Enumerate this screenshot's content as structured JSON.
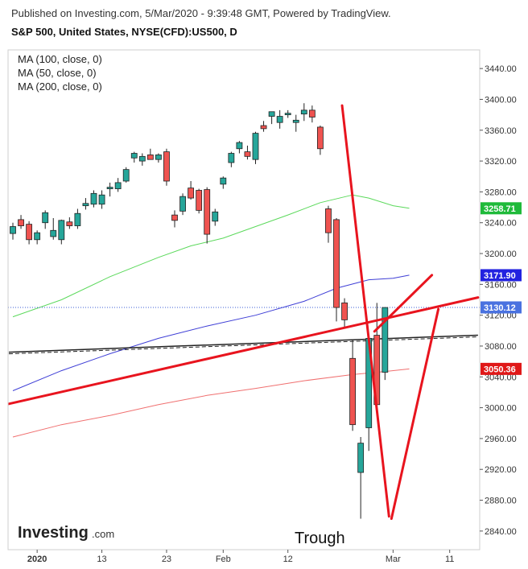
{
  "header": {
    "published": "Published on Investing.com, 5/Mar/2020 - 9:39:48 GMT, Powered by TradingView.",
    "title": "S&P 500, United States, NYSE(CFD):US500, D"
  },
  "brand": {
    "name": "Investing",
    "suffix": ".com"
  },
  "annotation": {
    "trough": "Trough"
  },
  "chart_data": {
    "type": "candlestick",
    "ylim": [
      2820,
      3460
    ],
    "y_ticks": [
      2840,
      2880,
      2920,
      2960,
      3000,
      3040,
      3080,
      3120,
      3160,
      3200,
      3240,
      3280,
      3320,
      3360,
      3400,
      3440
    ],
    "x_ticks": [
      {
        "label": "2020",
        "i": 3
      },
      {
        "label": "13",
        "i": 11
      },
      {
        "label": "23",
        "i": 19
      },
      {
        "label": "Feb",
        "i": 26
      },
      {
        "label": "12",
        "i": 34
      },
      {
        "label": "Mar",
        "i": 47
      },
      {
        "label": "11",
        "i": 54
      }
    ],
    "legend": [
      "MA (100, close, 0)",
      "MA (50, close, 0)",
      "MA (200, close, 0)"
    ],
    "colors": {
      "up": "#26a69a",
      "down": "#ef5350",
      "ma50": "#5bd95b",
      "ma100": "#3f3fd6",
      "ma200": "#f07070",
      "trend": "#e8141e"
    },
    "price_labels": [
      {
        "value": 3258.71,
        "text": "3258.71",
        "color": "#1fba3a"
      },
      {
        "value": 3171.9,
        "text": "3171.90",
        "color": "#2222e0"
      },
      {
        "value": 3130.12,
        "text": "3130.12",
        "color": "#4a72e0"
      },
      {
        "value": 3050.36,
        "text": "3050.36",
        "color": "#e01818"
      }
    ],
    "candles": [
      {
        "o": 3226,
        "h": 3240,
        "l": 3218,
        "c": 3235
      },
      {
        "o": 3244,
        "h": 3250,
        "l": 3232,
        "c": 3236
      },
      {
        "o": 3238,
        "h": 3242,
        "l": 3212,
        "c": 3218
      },
      {
        "o": 3218,
        "h": 3230,
        "l": 3212,
        "c": 3227
      },
      {
        "o": 3240,
        "h": 3256,
        "l": 3232,
        "c": 3253
      },
      {
        "o": 3222,
        "h": 3246,
        "l": 3218,
        "c": 3230
      },
      {
        "o": 3218,
        "h": 3244,
        "l": 3212,
        "c": 3243
      },
      {
        "o": 3241,
        "h": 3247,
        "l": 3232,
        "c": 3236
      },
      {
        "o": 3236,
        "h": 3258,
        "l": 3232,
        "c": 3252
      },
      {
        "o": 3262,
        "h": 3272,
        "l": 3257,
        "c": 3265
      },
      {
        "o": 3264,
        "h": 3282,
        "l": 3260,
        "c": 3278
      },
      {
        "o": 3264,
        "h": 3282,
        "l": 3258,
        "c": 3276
      },
      {
        "o": 3284,
        "h": 3292,
        "l": 3274,
        "c": 3286
      },
      {
        "o": 3284,
        "h": 3298,
        "l": 3280,
        "c": 3292
      },
      {
        "o": 3294,
        "h": 3312,
        "l": 3292,
        "c": 3309
      },
      {
        "o": 3324,
        "h": 3332,
        "l": 3318,
        "c": 3330
      },
      {
        "o": 3320,
        "h": 3330,
        "l": 3314,
        "c": 3326
      },
      {
        "o": 3328,
        "h": 3336,
        "l": 3322,
        "c": 3322
      },
      {
        "o": 3322,
        "h": 3330,
        "l": 3318,
        "c": 3328
      },
      {
        "o": 3332,
        "h": 3336,
        "l": 3288,
        "c": 3294
      },
      {
        "o": 3250,
        "h": 3256,
        "l": 3234,
        "c": 3243
      },
      {
        "o": 3255,
        "h": 3278,
        "l": 3250,
        "c": 3274
      },
      {
        "o": 3285,
        "h": 3294,
        "l": 3270,
        "c": 3272
      },
      {
        "o": 3282,
        "h": 3284,
        "l": 3252,
        "c": 3256
      },
      {
        "o": 3283,
        "h": 3286,
        "l": 3213,
        "c": 3225
      },
      {
        "o": 3242,
        "h": 3258,
        "l": 3236,
        "c": 3254
      },
      {
        "o": 3290,
        "h": 3300,
        "l": 3284,
        "c": 3298
      },
      {
        "o": 3318,
        "h": 3332,
        "l": 3312,
        "c": 3330
      },
      {
        "o": 3336,
        "h": 3346,
        "l": 3330,
        "c": 3344
      },
      {
        "o": 3332,
        "h": 3340,
        "l": 3322,
        "c": 3326
      },
      {
        "o": 3322,
        "h": 3358,
        "l": 3316,
        "c": 3356
      },
      {
        "o": 3366,
        "h": 3372,
        "l": 3358,
        "c": 3362
      },
      {
        "o": 3378,
        "h": 3384,
        "l": 3368,
        "c": 3384
      },
      {
        "o": 3370,
        "h": 3386,
        "l": 3362,
        "c": 3378
      },
      {
        "o": 3380,
        "h": 3386,
        "l": 3376,
        "c": 3382
      },
      {
        "o": 3370,
        "h": 3380,
        "l": 3358,
        "c": 3373
      },
      {
        "o": 3381,
        "h": 3395,
        "l": 3372,
        "c": 3386
      },
      {
        "o": 3386,
        "h": 3392,
        "l": 3370,
        "c": 3377
      },
      {
        "o": 3364,
        "h": 3366,
        "l": 3328,
        "c": 3336
      },
      {
        "o": 3258,
        "h": 3262,
        "l": 3214,
        "c": 3227
      },
      {
        "o": 3244,
        "h": 3246,
        "l": 3112,
        "c": 3130
      },
      {
        "o": 3136,
        "h": 3142,
        "l": 3104,
        "c": 3114
      },
      {
        "o": 3064,
        "h": 3088,
        "l": 2970,
        "c": 2978
      },
      {
        "o": 2916,
        "h": 2962,
        "l": 2856,
        "c": 2954
      },
      {
        "o": 2974,
        "h": 3092,
        "l": 2944,
        "c": 3090
      },
      {
        "o": 3094,
        "h": 3136,
        "l": 2996,
        "c": 3004
      },
      {
        "o": 3046,
        "h": 3130,
        "l": 3036,
        "c": 3130
      }
    ],
    "ma50": [
      [
        0,
        3118
      ],
      [
        6,
        3140
      ],
      [
        12,
        3170
      ],
      [
        18,
        3195
      ],
      [
        22,
        3210
      ],
      [
        26,
        3220
      ],
      [
        30,
        3235
      ],
      [
        34,
        3250
      ],
      [
        38,
        3266
      ],
      [
        42,
        3276
      ],
      [
        44,
        3272
      ],
      [
        47,
        3262
      ],
      [
        49,
        3258.71
      ]
    ],
    "ma100": [
      [
        0,
        3022
      ],
      [
        6,
        3048
      ],
      [
        12,
        3070
      ],
      [
        18,
        3090
      ],
      [
        24,
        3106
      ],
      [
        30,
        3120
      ],
      [
        36,
        3138
      ],
      [
        40,
        3155
      ],
      [
        44,
        3166
      ],
      [
        47,
        3168
      ],
      [
        49,
        3171.9
      ]
    ],
    "ma200": [
      [
        0,
        2962
      ],
      [
        6,
        2978
      ],
      [
        12,
        2990
      ],
      [
        18,
        3004
      ],
      [
        24,
        3016
      ],
      [
        30,
        3025
      ],
      [
        36,
        3035
      ],
      [
        42,
        3043
      ],
      [
        46,
        3047
      ],
      [
        49,
        3050.36
      ]
    ],
    "support_line": [
      [
        -0.5,
        3072
      ],
      [
        57.5,
        3094
      ]
    ],
    "trend_lines": [
      [
        [
          -0.5,
          3005
        ],
        [
          57.5,
          3143
        ]
      ],
      [
        [
          40.7,
          3392
        ],
        [
          46.5,
          2859
        ]
      ],
      [
        [
          46.8,
          2856
        ],
        [
          52.6,
          3128
        ]
      ],
      [
        [
          44.7,
          3099
        ],
        [
          51.8,
          3172
        ]
      ]
    ],
    "last_price_line": 3130.12
  }
}
